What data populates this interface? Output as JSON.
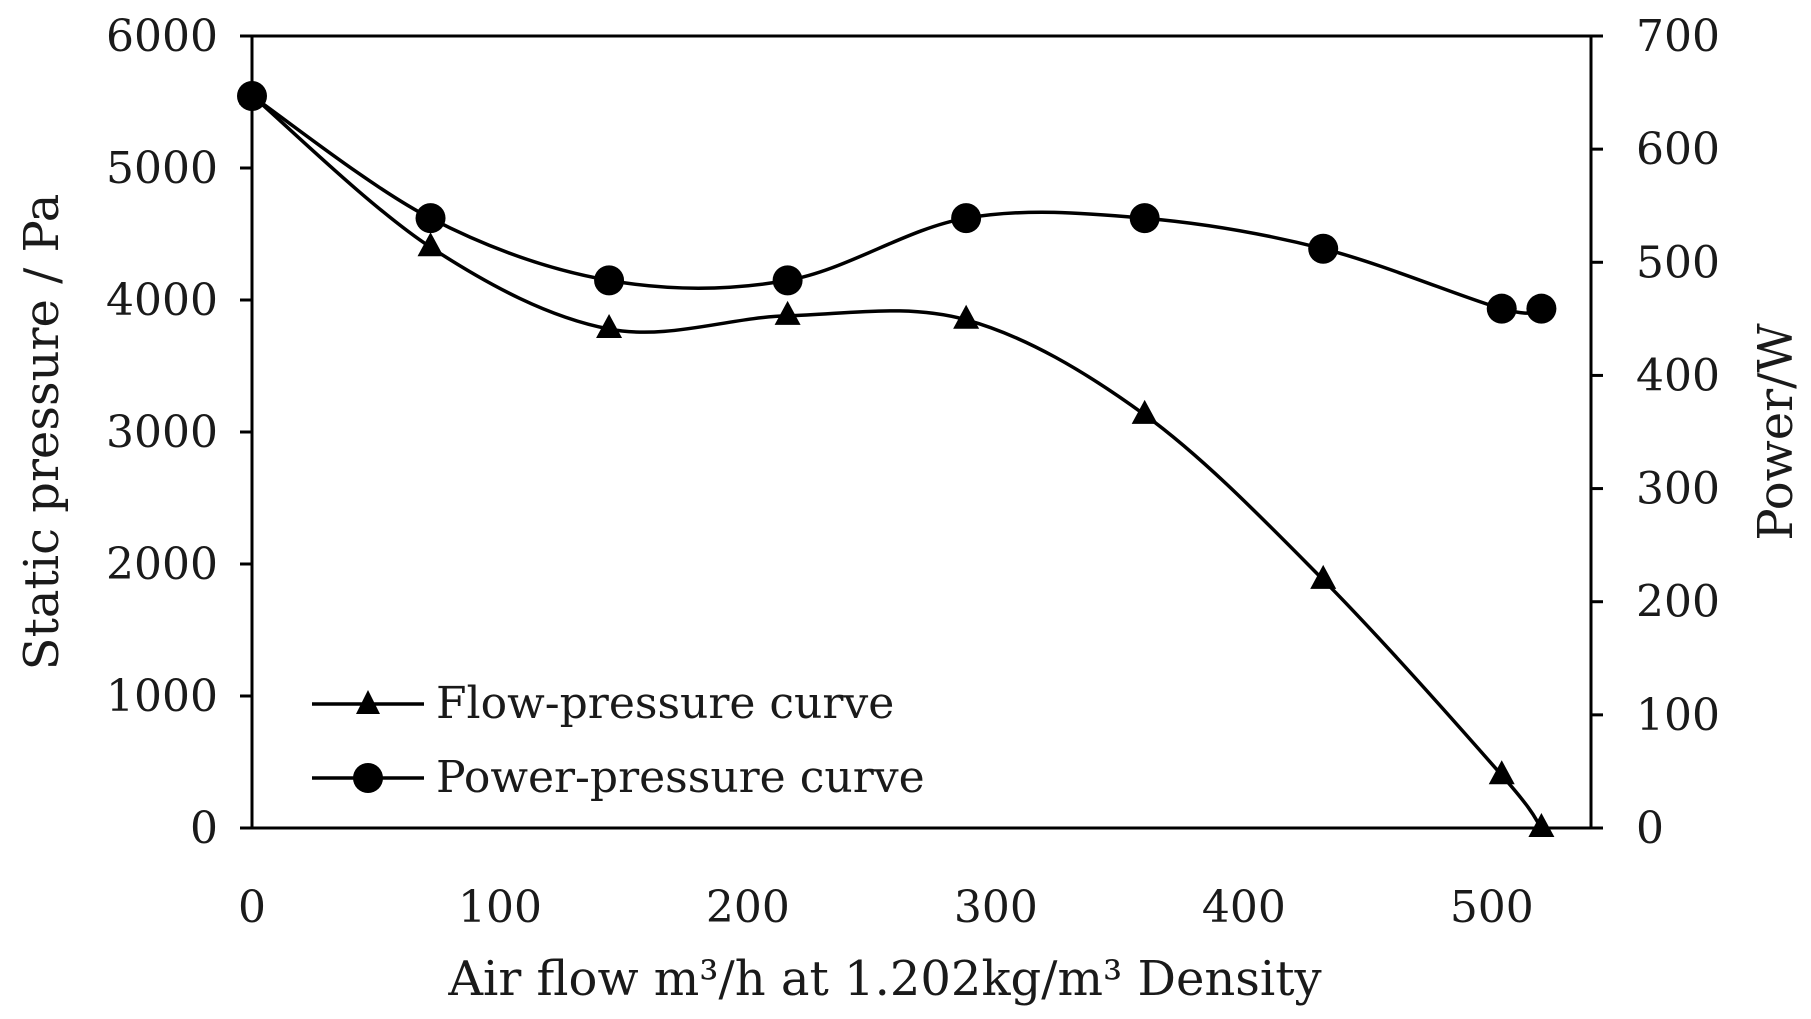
{
  "chart_data": {
    "type": "line",
    "title": "",
    "xlabel": "Air flow  m³/h at 1.202kg/m³ Density",
    "ylabel": "Static pressure / Pa",
    "y2label": "Power/W",
    "xlim": [
      0,
      540
    ],
    "ylim": [
      0,
      6000
    ],
    "y2lim": [
      0,
      700
    ],
    "xticks": [
      "0",
      "100",
      "200",
      "300",
      "400",
      "500"
    ],
    "yticks": [
      "0",
      "1000",
      "2000",
      "3000",
      "4000",
      "5000",
      "6000"
    ],
    "y2ticks": [
      "0",
      "100",
      "200",
      "300",
      "400",
      "500",
      "600",
      "700"
    ],
    "grid": false,
    "legend_position": "bottom-left",
    "series": [
      {
        "name": "Flow-pressure curve",
        "axis": "left",
        "marker": "triangle",
        "x": [
          0,
          72,
          144,
          216,
          288,
          360,
          432,
          504,
          520
        ],
        "y": [
          5550,
          4400,
          3780,
          3880,
          3850,
          3130,
          1880,
          400,
          0
        ]
      },
      {
        "name": "Power-pressure curve",
        "axis": "right",
        "marker": "circle",
        "x": [
          0,
          72,
          144,
          216,
          288,
          360,
          432,
          504,
          520
        ],
        "y": [
          647,
          539,
          484,
          484,
          539,
          539,
          512,
          459,
          459
        ]
      }
    ]
  }
}
